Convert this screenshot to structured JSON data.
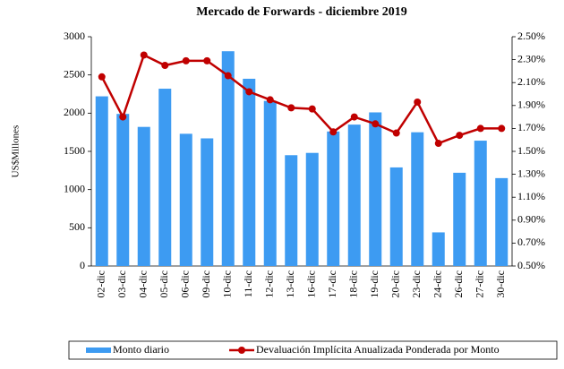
{
  "chart_data": {
    "type": "bar_line",
    "title": "Mercado de Forwards - diciembre 2019",
    "y_label": "US$Millones",
    "categories": [
      "02-dic",
      "03-dic",
      "04-dic",
      "05-dic",
      "06-dic",
      "09-dic",
      "10-dic",
      "11-dic",
      "12-dic",
      "13-dic",
      "16-dic",
      "17-dic",
      "18-dic",
      "19-dic",
      "20-dic",
      "23-dic",
      "24-dic",
      "26-dic",
      "27-dic",
      "30-dic"
    ],
    "series": [
      {
        "name": "Monto diario",
        "type": "bar",
        "color": "#3d9bf2",
        "axis": "y",
        "values": [
          2220,
          1990,
          1820,
          2320,
          1730,
          1670,
          2810,
          2450,
          2160,
          1450,
          1480,
          1760,
          1850,
          2010,
          1290,
          1750,
          440,
          1220,
          1640,
          1150
        ]
      },
      {
        "name": "Devaluación Implícita Anualizada Ponderada por Monto",
        "type": "line",
        "color": "#c00000",
        "axis": "y2",
        "values": [
          2.15,
          1.8,
          2.34,
          2.25,
          2.29,
          2.29,
          2.16,
          2.02,
          1.95,
          1.88,
          1.87,
          1.67,
          1.8,
          1.74,
          1.66,
          1.93,
          1.57,
          1.64,
          1.7,
          1.7
        ]
      }
    ],
    "ylim": [
      0,
      3000
    ],
    "yticks": [
      0,
      500,
      1000,
      1500,
      2000,
      2500,
      3000
    ],
    "y2lim": [
      0.5,
      2.5
    ],
    "y2ticks": [
      {
        "value": 0.5,
        "label": "0.50%"
      },
      {
        "value": 0.7,
        "label": "0.70%"
      },
      {
        "value": 0.9,
        "label": "0.90%"
      },
      {
        "value": 1.1,
        "label": "1.10%"
      },
      {
        "value": 1.3,
        "label": "1.30%"
      },
      {
        "value": 1.5,
        "label": "1.50%"
      },
      {
        "value": 1.7,
        "label": "1.70%"
      },
      {
        "value": 1.9,
        "label": "1.90%"
      },
      {
        "value": 2.1,
        "label": "2.10%"
      },
      {
        "value": 2.3,
        "label": "2.30%"
      },
      {
        "value": 2.5,
        "label": "2.50%"
      }
    ],
    "legend": "bottom"
  }
}
